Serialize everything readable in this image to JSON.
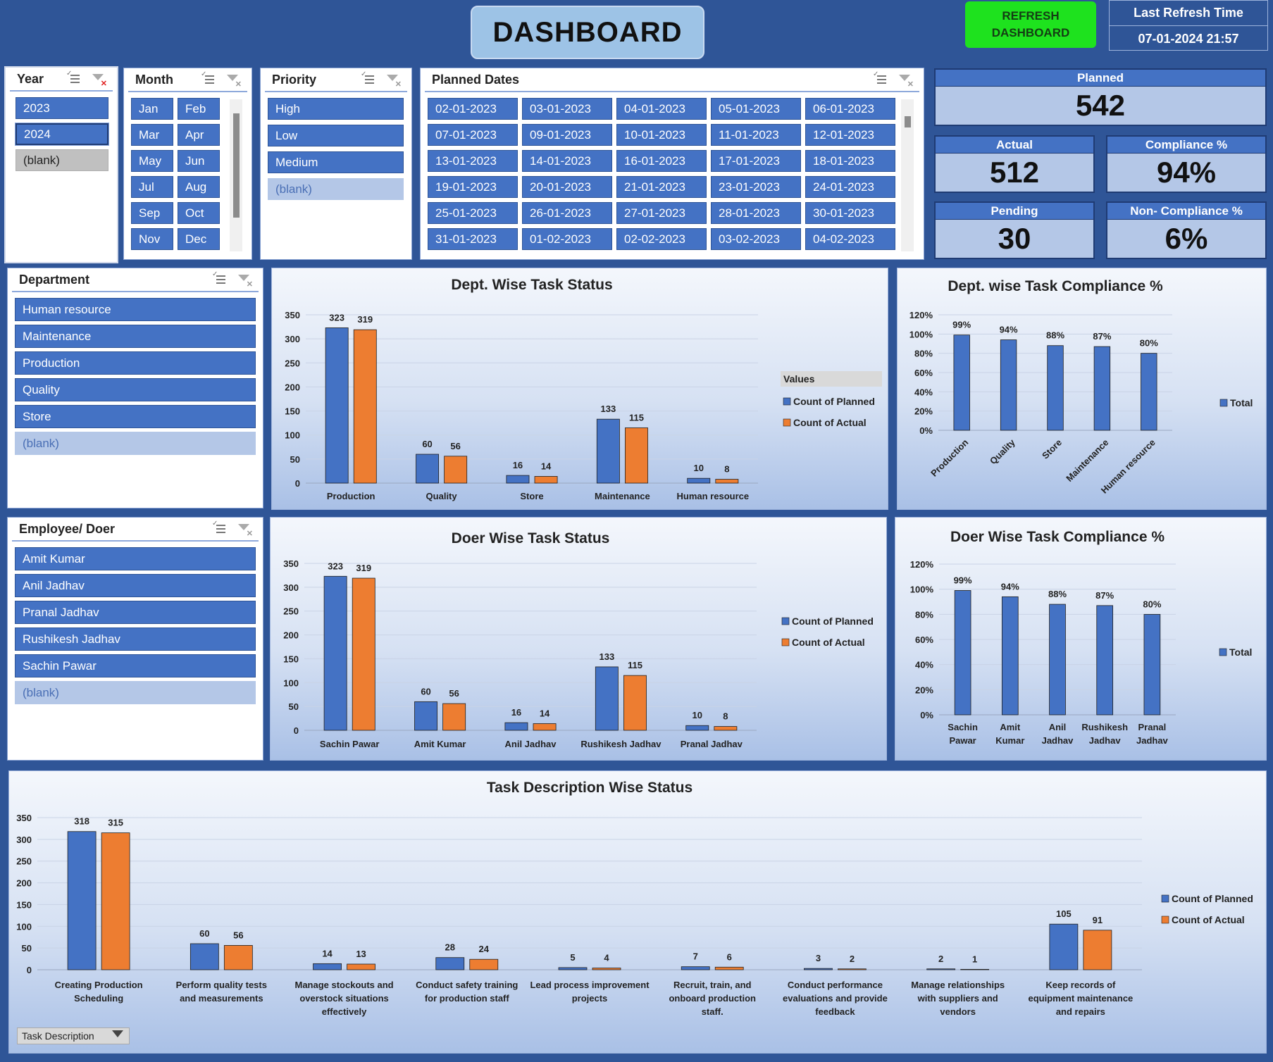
{
  "header": {
    "title": "DASHBOARD",
    "refresh_button": "REFRESH DASHBOARD",
    "last_refresh_label": "Last Refresh Time",
    "last_refresh_value": "07-01-2024 21:57"
  },
  "slicers": {
    "year": {
      "title": "Year",
      "items": [
        "2023",
        "2024",
        "(blank)"
      ]
    },
    "month": {
      "title": "Month",
      "items": [
        "Jan",
        "Feb",
        "Mar",
        "Apr",
        "May",
        "Jun",
        "Jul",
        "Aug",
        "Sep",
        "Oct",
        "Nov",
        "Dec"
      ]
    },
    "priority": {
      "title": "Priority",
      "items": [
        "High",
        "Low",
        "Medium",
        "(blank)"
      ]
    },
    "planned_dates": {
      "title": "Planned Dates",
      "items": [
        "02-01-2023",
        "03-01-2023",
        "04-01-2023",
        "05-01-2023",
        "06-01-2023",
        "07-01-2023",
        "09-01-2023",
        "10-01-2023",
        "11-01-2023",
        "12-01-2023",
        "13-01-2023",
        "14-01-2023",
        "16-01-2023",
        "17-01-2023",
        "18-01-2023",
        "19-01-2023",
        "20-01-2023",
        "21-01-2023",
        "23-01-2023",
        "24-01-2023",
        "25-01-2023",
        "26-01-2023",
        "27-01-2023",
        "28-01-2023",
        "30-01-2023",
        "31-01-2023",
        "01-02-2023",
        "02-02-2023",
        "03-02-2023",
        "04-02-2023"
      ]
    },
    "department": {
      "title": "Department",
      "items": [
        "Human resource",
        "Maintenance",
        "Production",
        "Quality",
        "Store",
        "(blank)"
      ]
    },
    "employee": {
      "title": "Employee/ Doer",
      "items": [
        "Amit Kumar",
        "Anil Jadhav",
        "Pranal Jadhav",
        "Rushikesh Jadhav",
        "Sachin Pawar",
        "(blank)"
      ]
    }
  },
  "kpis": {
    "planned": {
      "label": "Planned",
      "value": "542"
    },
    "actual": {
      "label": "Actual",
      "value": "512"
    },
    "compliance": {
      "label": "Compliance %",
      "value": "94%"
    },
    "pending": {
      "label": "Pending",
      "value": "30"
    },
    "non_compliance": {
      "label": "Non- Compliance %",
      "value": "6%"
    }
  },
  "task_description_field": "Task Description",
  "colors": {
    "planned": "#4472c4",
    "actual": "#ed7d31",
    "background": "#2f5597",
    "refresh": "#1ee21e"
  },
  "chart_data": [
    {
      "id": "dept_status",
      "type": "bar",
      "title": "Dept. Wise Task Status",
      "categories": [
        "Production",
        "Quality",
        "Store",
        "Maintenance",
        "Human resource"
      ],
      "series": [
        {
          "name": "Count of Planned",
          "values": [
            323,
            60,
            16,
            133,
            10
          ]
        },
        {
          "name": "Count of Actual",
          "values": [
            319,
            56,
            14,
            115,
            8
          ]
        }
      ],
      "yticks": [
        "0",
        "50",
        "100",
        "150",
        "200",
        "250",
        "300",
        "350"
      ],
      "ylim": [
        0,
        350
      ],
      "legend_title": "Values",
      "legend": "right"
    },
    {
      "id": "dept_compliance",
      "type": "bar",
      "title": "Dept. wise Task Compliance %",
      "categories": [
        "Production",
        "Quality",
        "Store",
        "Maintenance",
        "Human resource"
      ],
      "series": [
        {
          "name": "Total",
          "values": [
            99,
            94,
            88,
            87,
            80
          ],
          "labels": [
            "99%",
            "94%",
            "88%",
            "87%",
            "80%"
          ]
        }
      ],
      "yticks": [
        "0%",
        "20%",
        "40%",
        "60%",
        "80%",
        "100%",
        "120%"
      ],
      "ylim": [
        0,
        120
      ],
      "legend": "right"
    },
    {
      "id": "doer_status",
      "type": "bar",
      "title": "Doer Wise Task Status",
      "categories": [
        "Sachin Pawar",
        "Amit Kumar",
        "Anil Jadhav",
        "Rushikesh Jadhav",
        "Pranal Jadhav"
      ],
      "series": [
        {
          "name": "Count of Planned",
          "values": [
            323,
            60,
            16,
            133,
            10
          ]
        },
        {
          "name": "Count of Actual",
          "values": [
            319,
            56,
            14,
            115,
            8
          ]
        }
      ],
      "yticks": [
        "0",
        "50",
        "100",
        "150",
        "200",
        "250",
        "300",
        "350"
      ],
      "ylim": [
        0,
        350
      ],
      "legend": "right"
    },
    {
      "id": "doer_compliance",
      "type": "bar",
      "title": "Doer Wise Task Compliance %",
      "categories": [
        "Sachin Pawar",
        "Amit Kumar",
        "Anil Jadhav",
        "Rushikesh Jadhav",
        "Pranal Jadhav"
      ],
      "series": [
        {
          "name": "Total",
          "values": [
            99,
            94,
            88,
            87,
            80
          ],
          "labels": [
            "99%",
            "94%",
            "88%",
            "87%",
            "80%"
          ]
        }
      ],
      "yticks": [
        "0%",
        "20%",
        "40%",
        "60%",
        "80%",
        "100%",
        "120%"
      ],
      "ylim": [
        0,
        120
      ],
      "legend": "right"
    },
    {
      "id": "task_status",
      "type": "bar",
      "title": "Task Description Wise Status",
      "categories": [
        "Creating Production Scheduling",
        "Perform quality tests and measurements",
        "Manage stockouts and overstock situations effectively",
        "Conduct safety training for production staff",
        "Lead process improvement projects",
        "Recruit, train, and onboard production staff.",
        "Conduct performance evaluations and provide feedback",
        "Manage relationships with suppliers and vendors",
        "Keep records of equipment maintenance and repairs"
      ],
      "series": [
        {
          "name": "Count of Planned",
          "values": [
            318,
            60,
            14,
            28,
            5,
            7,
            3,
            2,
            105
          ]
        },
        {
          "name": "Count of Actual",
          "values": [
            315,
            56,
            13,
            24,
            4,
            6,
            2,
            1,
            91
          ]
        }
      ],
      "yticks": [
        "0",
        "50",
        "100",
        "150",
        "200",
        "250",
        "300",
        "350"
      ],
      "ylim": [
        0,
        350
      ],
      "legend": "right"
    }
  ]
}
